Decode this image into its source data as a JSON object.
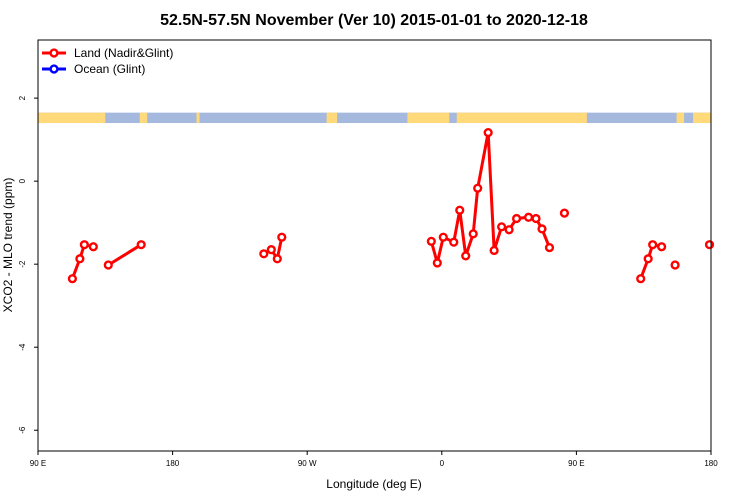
{
  "chart_data": {
    "type": "line",
    "title": "52.5N-57.5N November (Ver 10)   2015-01-01 to 2020-12-18",
    "xlabel": "Longitude (deg E)",
    "ylabel": "XCO2 - MLO trend (ppm)",
    "xlim": [
      90,
      540
    ],
    "ylim": [
      -6.5,
      3.4
    ],
    "x_ticks": [
      {
        "value": 90,
        "label": "90 E"
      },
      {
        "value": 180,
        "label": "180"
      },
      {
        "value": 270,
        "label": "90 W"
      },
      {
        "value": 360,
        "label": "0"
      },
      {
        "value": 450,
        "label": "90 E"
      },
      {
        "value": 540,
        "label": "180"
      }
    ],
    "y_ticks": [
      {
        "value": 2,
        "label": "2"
      },
      {
        "value": 0,
        "label": "0"
      },
      {
        "value": -2,
        "label": "-2"
      },
      {
        "value": -4,
        "label": "-4"
      },
      {
        "value": -6,
        "label": "-6"
      }
    ],
    "legend": {
      "position": "top-left",
      "entries": [
        {
          "label": "Land (Nadir&Glint)",
          "color": "#ff0000"
        },
        {
          "label": "Ocean (Glint)",
          "color": "#0000ff"
        }
      ]
    },
    "land_ocean_band": {
      "y_range": [
        1.4,
        1.65
      ],
      "land_color": "#ffd97a",
      "ocean_color": "#a4b9dd",
      "land_x_ranges": [
        [
          90,
          135
        ],
        [
          158,
          163
        ],
        [
          196,
          198
        ],
        [
          283,
          290
        ],
        [
          337,
          365
        ],
        [
          370,
          457
        ],
        [
          517,
          522
        ],
        [
          528,
          540
        ]
      ]
    },
    "series": [
      {
        "name": "Land (Nadir&Glint)",
        "color": "#ff0000",
        "segments": [
          [
            [
              113,
              -2.35
            ],
            [
              118,
              -1.87
            ],
            [
              121,
              -1.53
            ],
            [
              127,
              -1.58
            ]
          ],
          [
            [
              137,
              -2.02
            ],
            [
              159,
              -1.53
            ]
          ],
          [
            [
              241,
              -1.75
            ],
            [
              246,
              -1.65
            ],
            [
              250,
              -1.87
            ],
            [
              253,
              -1.35
            ]
          ],
          [
            [
              353,
              -1.45
            ],
            [
              357,
              -1.97
            ],
            [
              361,
              -1.35
            ],
            [
              368,
              -1.47
            ],
            [
              372,
              -0.7
            ],
            [
              376,
              -1.8
            ],
            [
              381,
              -1.27
            ],
            [
              384,
              -0.17
            ],
            [
              391,
              1.17
            ],
            [
              395,
              -1.67
            ],
            [
              400,
              -1.1
            ],
            [
              405,
              -1.17
            ],
            [
              410,
              -0.9
            ],
            [
              418,
              -0.87
            ],
            [
              423,
              -0.9
            ],
            [
              427,
              -1.15
            ],
            [
              432,
              -1.6
            ]
          ],
          [
            [
              442,
              -0.77
            ]
          ],
          [
            [
              493,
              -2.35
            ],
            [
              498,
              -1.87
            ],
            [
              501,
              -1.53
            ],
            [
              507,
              -1.58
            ]
          ],
          [
            [
              516,
              -2.02
            ]
          ],
          [
            [
              539,
              -1.53
            ]
          ]
        ]
      },
      {
        "name": "Ocean (Glint)",
        "color": "#0000ff",
        "segments": []
      }
    ]
  }
}
